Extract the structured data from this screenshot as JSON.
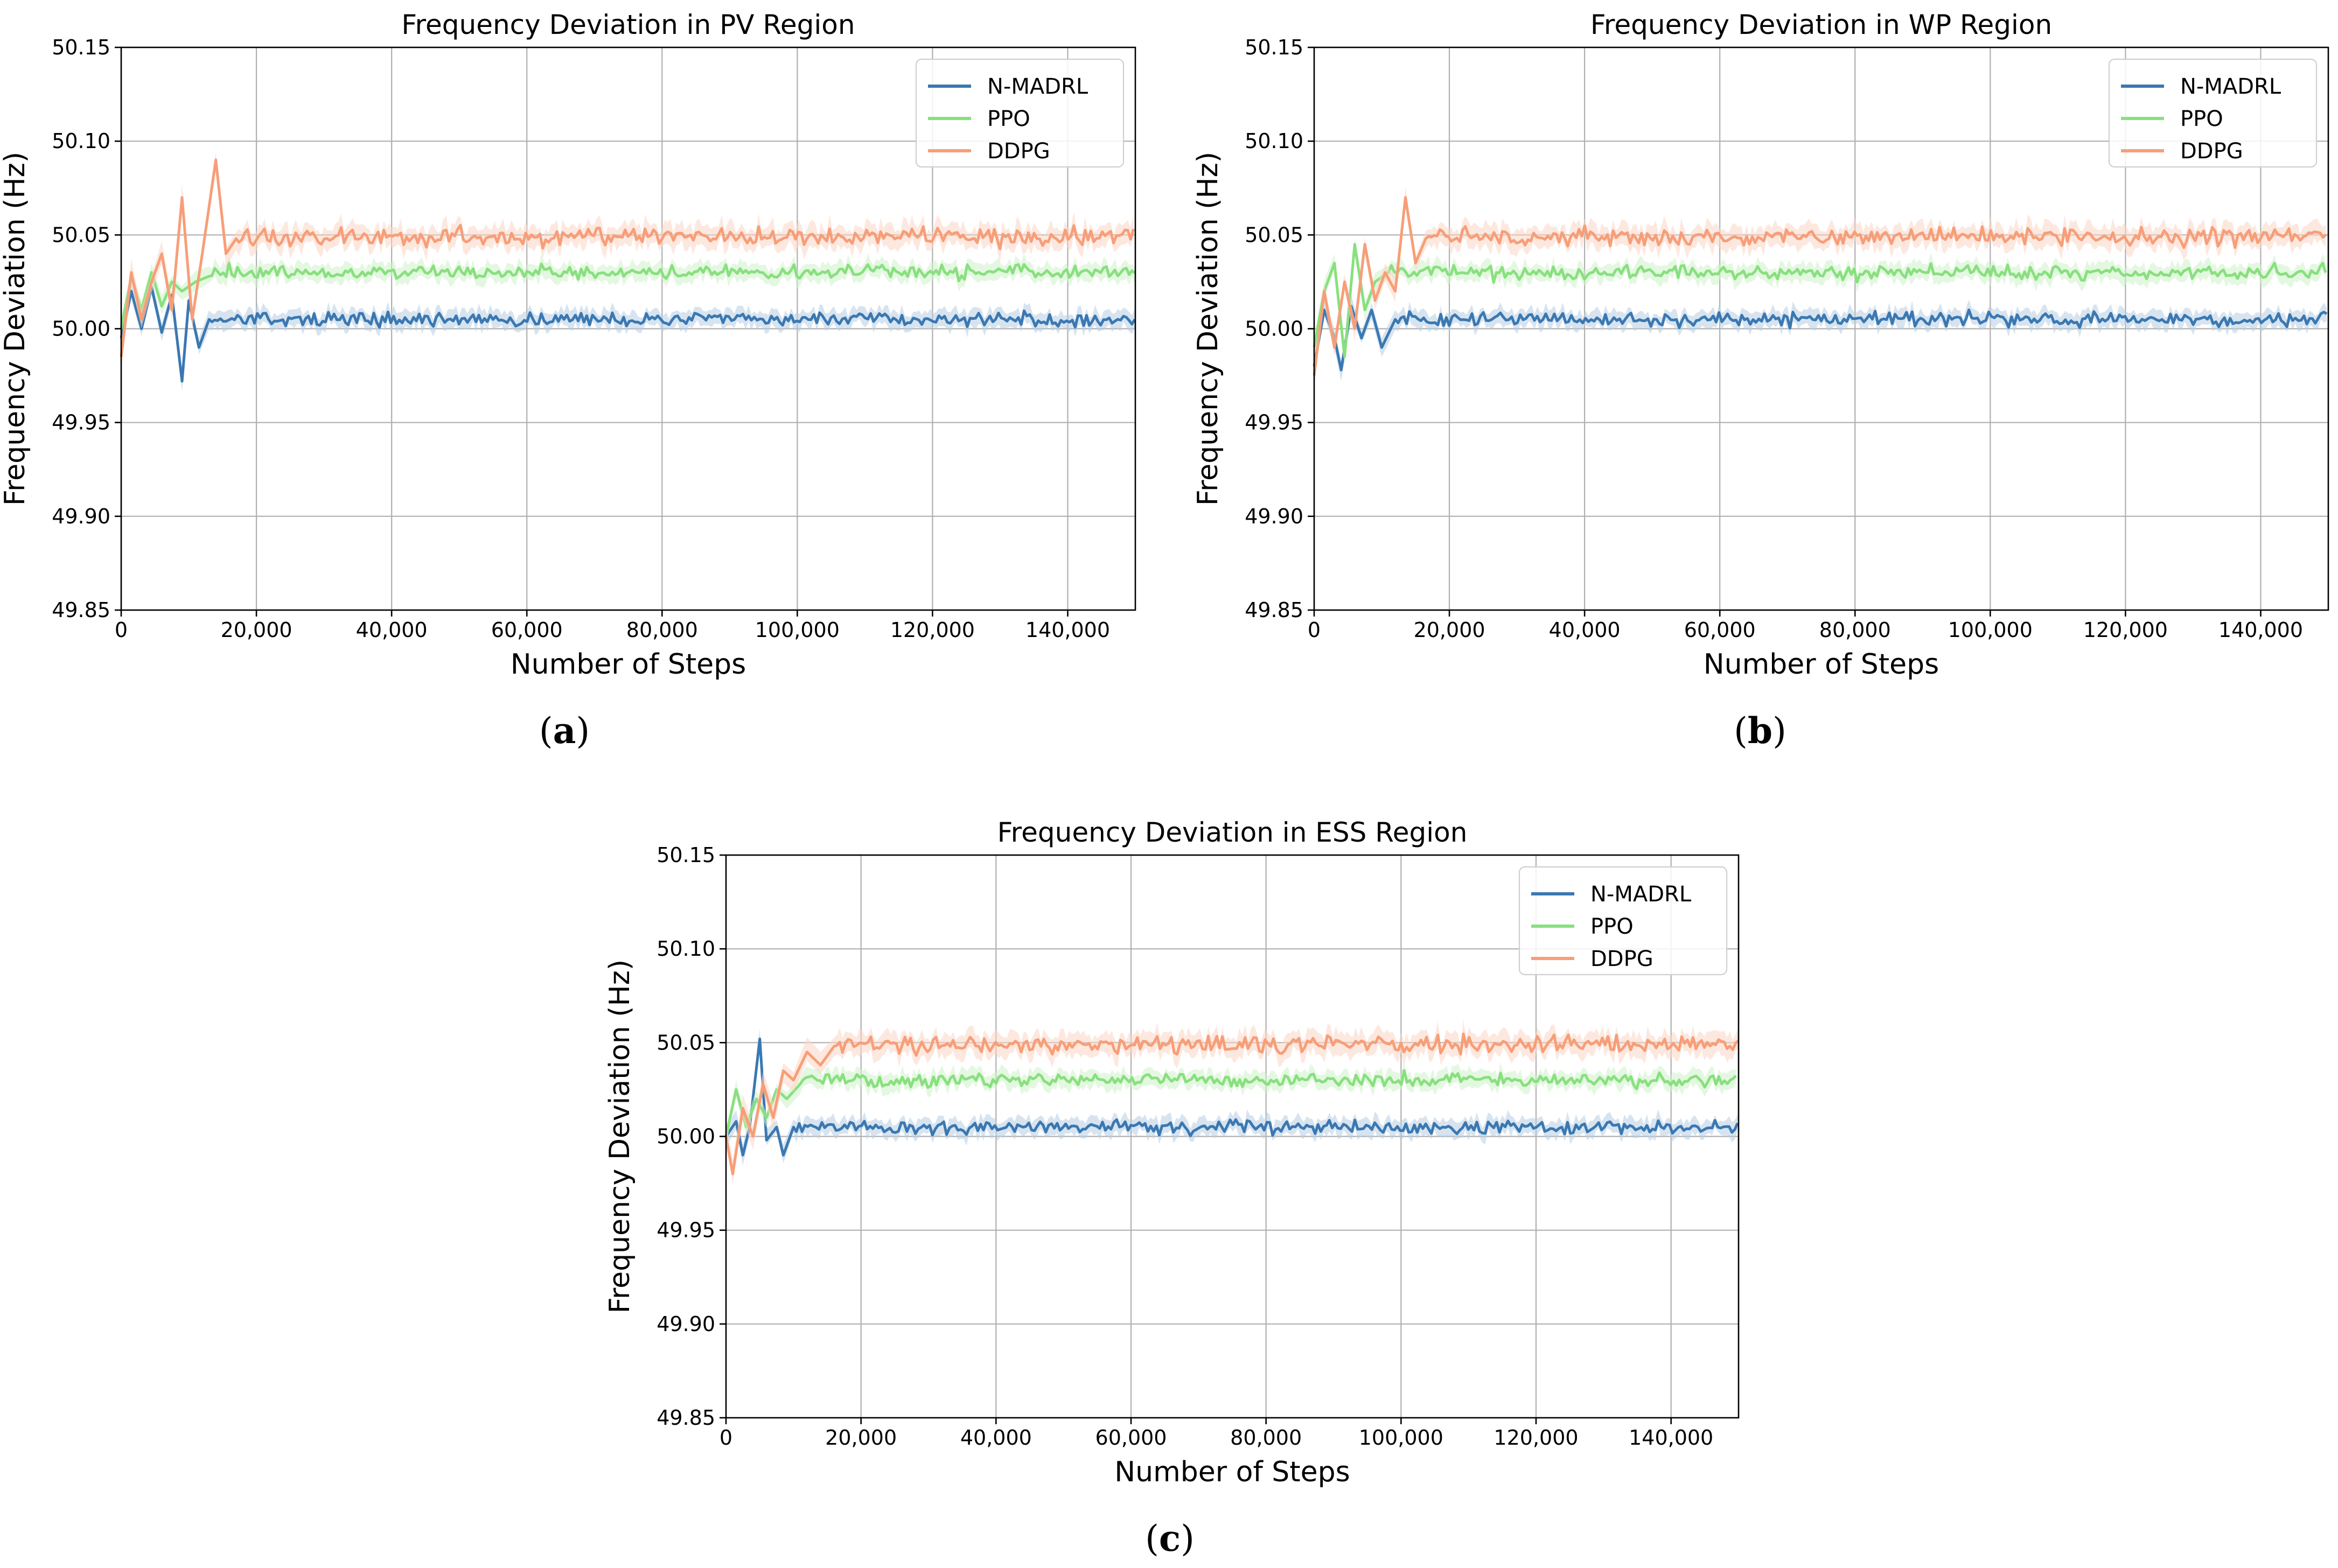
{
  "figure": {
    "caption_a": "a",
    "caption_b": "b",
    "caption_c": "c"
  },
  "chart_data": [
    {
      "type": "line",
      "title": "Frequency Deviation in PV Region",
      "xlabel": "Number of Steps",
      "ylabel": "Frequency Deviation (Hz)",
      "xlim": [
        0,
        150000
      ],
      "ylim": [
        49.85,
        50.15
      ],
      "xticks": [
        0,
        20000,
        40000,
        60000,
        80000,
        100000,
        120000,
        140000
      ],
      "xtick_labels": [
        "0",
        "20,000",
        "40,000",
        "60,000",
        "80,000",
        "100,000",
        "120,000",
        "140,000"
      ],
      "yticks": [
        49.85,
        49.9,
        49.95,
        50.0,
        50.05,
        50.1,
        50.15
      ],
      "ytick_labels": [
        "49.85",
        "49.90",
        "49.95",
        "50.00",
        "50.05",
        "50.10",
        "50.15"
      ],
      "grid": true,
      "legend_position": "top-right",
      "series": [
        {
          "name": "N-MADRL",
          "color": "#3a78b2",
          "band_color": "#b7cde3",
          "level": 50.005,
          "noise": 0.0035,
          "early": [
            [
              0,
              49.995
            ],
            [
              1500,
              50.02
            ],
            [
              3000,
              50.0
            ],
            [
              4500,
              50.022
            ],
            [
              6000,
              49.998
            ],
            [
              7500,
              50.018
            ],
            [
              9000,
              49.972
            ],
            [
              10000,
              50.015
            ],
            [
              11500,
              49.99
            ],
            [
              13000,
              50.005
            ]
          ]
        },
        {
          "name": "PPO",
          "color": "#88e07e",
          "band_color": "#cdf3c8",
          "level": 50.03,
          "noise": 0.0035,
          "early": [
            [
              0,
              50.0
            ],
            [
              1500,
              50.028
            ],
            [
              3000,
              50.01
            ],
            [
              4500,
              50.03
            ],
            [
              6000,
              50.012
            ],
            [
              7500,
              50.025
            ],
            [
              9000,
              50.02
            ],
            [
              11000,
              50.025
            ],
            [
              13000,
              50.028
            ]
          ]
        },
        {
          "name": "DDPG",
          "color": "#f79e78",
          "band_color": "#fcd6c4",
          "level": 50.049,
          "noise": 0.0045,
          "early": [
            [
              0,
              49.985
            ],
            [
              1500,
              50.03
            ],
            [
              3000,
              50.005
            ],
            [
              4500,
              50.025
            ],
            [
              6000,
              50.04
            ],
            [
              7500,
              50.01
            ],
            [
              9000,
              50.07
            ],
            [
              10500,
              50.005
            ],
            [
              12000,
              50.04
            ],
            [
              14000,
              50.09
            ],
            [
              15500,
              50.04
            ],
            [
              17000,
              50.048
            ]
          ]
        }
      ]
    },
    {
      "type": "line",
      "title": "Frequency Deviation in WP Region",
      "xlabel": "Number of Steps",
      "ylabel": "Frequency Deviation (Hz)",
      "xlim": [
        0,
        150000
      ],
      "ylim": [
        49.85,
        50.15
      ],
      "xticks": [
        0,
        20000,
        40000,
        60000,
        80000,
        100000,
        120000,
        140000
      ],
      "xtick_labels": [
        "0",
        "20,000",
        "40,000",
        "60,000",
        "80,000",
        "100,000",
        "120,000",
        "140,000"
      ],
      "yticks": [
        49.85,
        49.9,
        49.95,
        50.0,
        50.05,
        50.1,
        50.15
      ],
      "ytick_labels": [
        "49.85",
        "49.90",
        "49.95",
        "50.00",
        "50.05",
        "50.10",
        "50.15"
      ],
      "grid": true,
      "legend_position": "top-right",
      "series": [
        {
          "name": "N-MADRL",
          "color": "#3a78b2",
          "band_color": "#b7cde3",
          "level": 50.005,
          "noise": 0.0035,
          "early": [
            [
              0,
              49.98
            ],
            [
              1500,
              50.01
            ],
            [
              3000,
              49.995
            ],
            [
              4000,
              49.978
            ],
            [
              5500,
              50.012
            ],
            [
              7000,
              49.995
            ],
            [
              8500,
              50.01
            ],
            [
              10000,
              49.99
            ],
            [
              12000,
              50.005
            ]
          ]
        },
        {
          "name": "PPO",
          "color": "#88e07e",
          "band_color": "#cdf3c8",
          "level": 50.03,
          "noise": 0.0035,
          "early": [
            [
              0,
              49.99
            ],
            [
              1500,
              50.02
            ],
            [
              3000,
              50.035
            ],
            [
              4500,
              49.985
            ],
            [
              6000,
              50.045
            ],
            [
              7500,
              50.01
            ],
            [
              9000,
              50.025
            ],
            [
              11000,
              50.03
            ]
          ]
        },
        {
          "name": "DDPG",
          "color": "#f79e78",
          "band_color": "#fcd6c4",
          "level": 50.049,
          "noise": 0.0045,
          "early": [
            [
              0,
              49.975
            ],
            [
              1500,
              50.02
            ],
            [
              3000,
              49.99
            ],
            [
              4500,
              50.025
            ],
            [
              6000,
              50.0
            ],
            [
              7500,
              50.045
            ],
            [
              9000,
              50.015
            ],
            [
              10500,
              50.03
            ],
            [
              12000,
              50.02
            ],
            [
              13500,
              50.07
            ],
            [
              15000,
              50.035
            ],
            [
              16500,
              50.048
            ]
          ]
        }
      ]
    },
    {
      "type": "line",
      "title": "Frequency Deviation in ESS Region",
      "xlabel": "Number of Steps",
      "ylabel": "Frequency Deviation (Hz)",
      "xlim": [
        0,
        150000
      ],
      "ylim": [
        49.85,
        50.15
      ],
      "xticks": [
        0,
        20000,
        40000,
        60000,
        80000,
        100000,
        120000,
        140000
      ],
      "xtick_labels": [
        "0",
        "20,000",
        "40,000",
        "60,000",
        "80,000",
        "100,000",
        "120,000",
        "140,000"
      ],
      "yticks": [
        49.85,
        49.9,
        49.95,
        50.0,
        50.05,
        50.1,
        50.15
      ],
      "ytick_labels": [
        "49.85",
        "49.90",
        "49.95",
        "50.00",
        "50.05",
        "50.10",
        "50.15"
      ],
      "grid": true,
      "legend_position": "top-right",
      "series": [
        {
          "name": "N-MADRL",
          "color": "#3a78b2",
          "band_color": "#b7cde3",
          "level": 50.005,
          "noise": 0.0035,
          "early": [
            [
              0,
              50.0
            ],
            [
              1500,
              50.008
            ],
            [
              2500,
              49.99
            ],
            [
              3500,
              50.005
            ],
            [
              5000,
              50.052
            ],
            [
              6000,
              49.998
            ],
            [
              7500,
              50.005
            ],
            [
              8500,
              49.99
            ],
            [
              10000,
              50.005
            ]
          ]
        },
        {
          "name": "PPO",
          "color": "#88e07e",
          "band_color": "#cdf3c8",
          "level": 50.03,
          "noise": 0.0035,
          "early": [
            [
              0,
              50.0
            ],
            [
              1500,
              50.025
            ],
            [
              3000,
              50.005
            ],
            [
              4500,
              50.02
            ],
            [
              6000,
              50.01
            ],
            [
              7500,
              50.025
            ],
            [
              9000,
              50.02
            ],
            [
              11000,
              50.028
            ]
          ]
        },
        {
          "name": "DDPG",
          "color": "#f79e78",
          "band_color": "#fcd6c4",
          "level": 50.049,
          "noise": 0.0045,
          "early": [
            [
              0,
              50.0
            ],
            [
              1000,
              49.98
            ],
            [
              2500,
              50.015
            ],
            [
              4000,
              50.0
            ],
            [
              5500,
              50.028
            ],
            [
              7000,
              50.01
            ],
            [
              8500,
              50.035
            ],
            [
              10000,
              50.03
            ],
            [
              12000,
              50.045
            ],
            [
              14000,
              50.038
            ],
            [
              16000,
              50.048
            ]
          ]
        }
      ]
    }
  ]
}
